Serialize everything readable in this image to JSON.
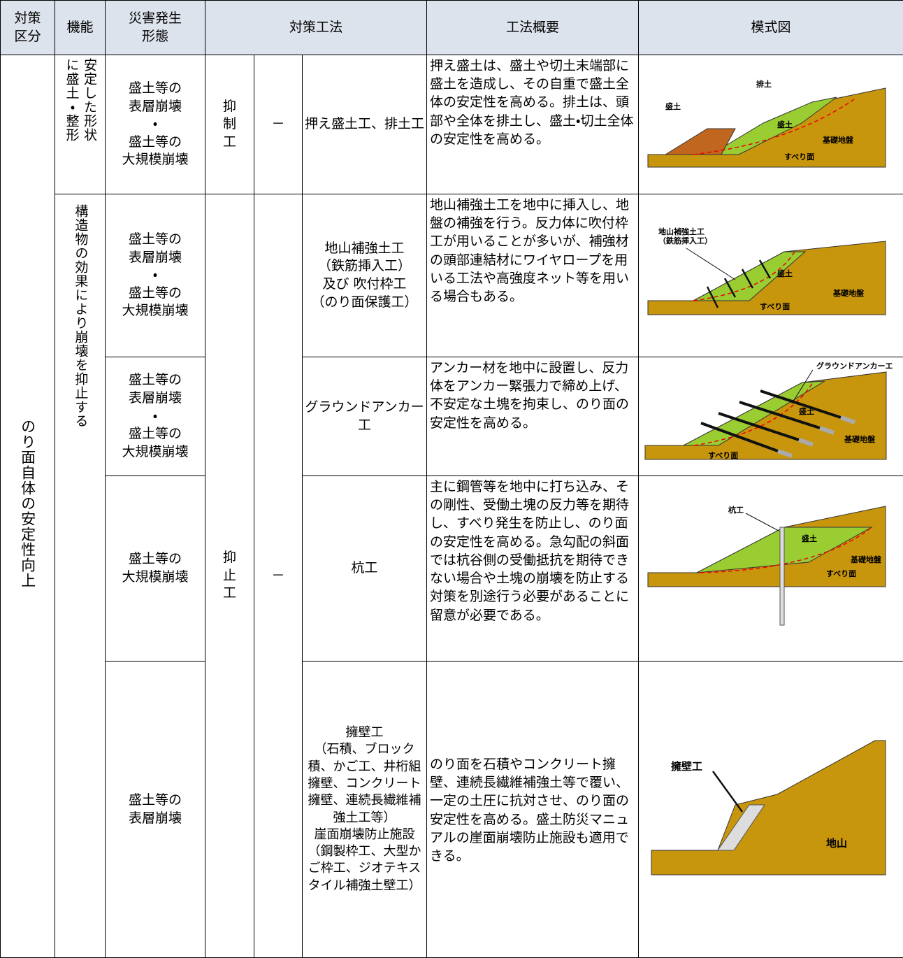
{
  "header": [
    "対策\n区分",
    "機能",
    "災害発生\n形態",
    "対策工法",
    "工法概要",
    "模式図"
  ],
  "category": "のり面自体の安定性向上",
  "groups": [
    {
      "function": "安定した形状\nに盛土・整形",
      "type": "抑\n制\n工",
      "dash": "－",
      "rows": [
        {
          "disaster": "盛土等の\n表層崩壊\n・\n盛土等の\n大規模崩壊",
          "method": "押え盛土工、排土工",
          "summary": "押え盛土は、盛土や切土末端部に盛土を造成し、その自重で盛土全体の安定性を高める。排土は、頭部や全体を排土し、盛土・切土全体の安定性を高める。",
          "diagram": [
            "排土",
            "盛土",
            "盛土",
            "基礎地盤",
            "すべり面"
          ]
        }
      ]
    },
    {
      "function": "構造物の効果により崩壊を抑止する",
      "type": "抑\n止\n工",
      "dash": "－",
      "rows": [
        {
          "disaster": "盛土等の\n表層崩壊\n・\n盛土等の\n大規模崩壊",
          "method": "地山補強土工\n（鉄筋挿入工）\n及び 吹付枠工\n（のり面保護工）",
          "summary": "地山補強土工を地中に挿入し、地盤の補強を行う。反力体に吹付枠工が用いることが多いが、補強材の頭部連結材にワイヤロープを用いる工法や高強度ネット等を用いる場合もある。",
          "diagram": [
            "地山補強土工",
            "（鉄筋挿入工）",
            "盛土",
            "基礎地盤",
            "すべり面"
          ]
        },
        {
          "disaster": "盛土等の\n表層崩壊\n・\n盛土等の\n大規模崩壊",
          "method": "グラウンドアンカー工",
          "summary": "アンカー材を地中に設置し、反力体をアンカー緊張力で締め上げ、不安定な土塊を拘束し、のり面の安定性を高める。",
          "diagram": [
            "グラウンドアンカーエ",
            "盛土",
            "基礎地盤",
            "すべり面"
          ]
        },
        {
          "disaster": "盛土等の\n大規模崩壊",
          "method": "杭工",
          "summary": "主に鋼管等を地中に打ち込み、その剛性、受働土塊の反力等を期待し、すべり発生を防止し、のり面の安定性を高める。急勾配の斜面では杭谷側の受働抵抗を期待できない場合や土塊の崩壊を防止する対策を別途行う必要があることに留意が必要である。",
          "diagram": [
            "杭工",
            "盛土",
            "基礎地盤",
            "すべり面"
          ]
        },
        {
          "disaster": "盛土等の\n表層崩壊",
          "method": "擁壁工\n（石積、ブロック積、かご工、井桁組擁壁、コンクリート擁壁、連続長繊維補強土工等）\n崖面崩壊防止施設\n（鋼製枠工、大型かご枠工、ジオテキスタイル補強土壁工）",
          "summary": "のり面を石積やコンクリート擁壁、連続長繊維補強土等で覆い、一定の土圧に抗対させ、のり面の安定性を高める。盛土防災マニュアルの崖面崩壊防止施設も適用できる。",
          "diagram": [
            "擁壁工",
            "地山"
          ]
        }
      ]
    }
  ]
}
